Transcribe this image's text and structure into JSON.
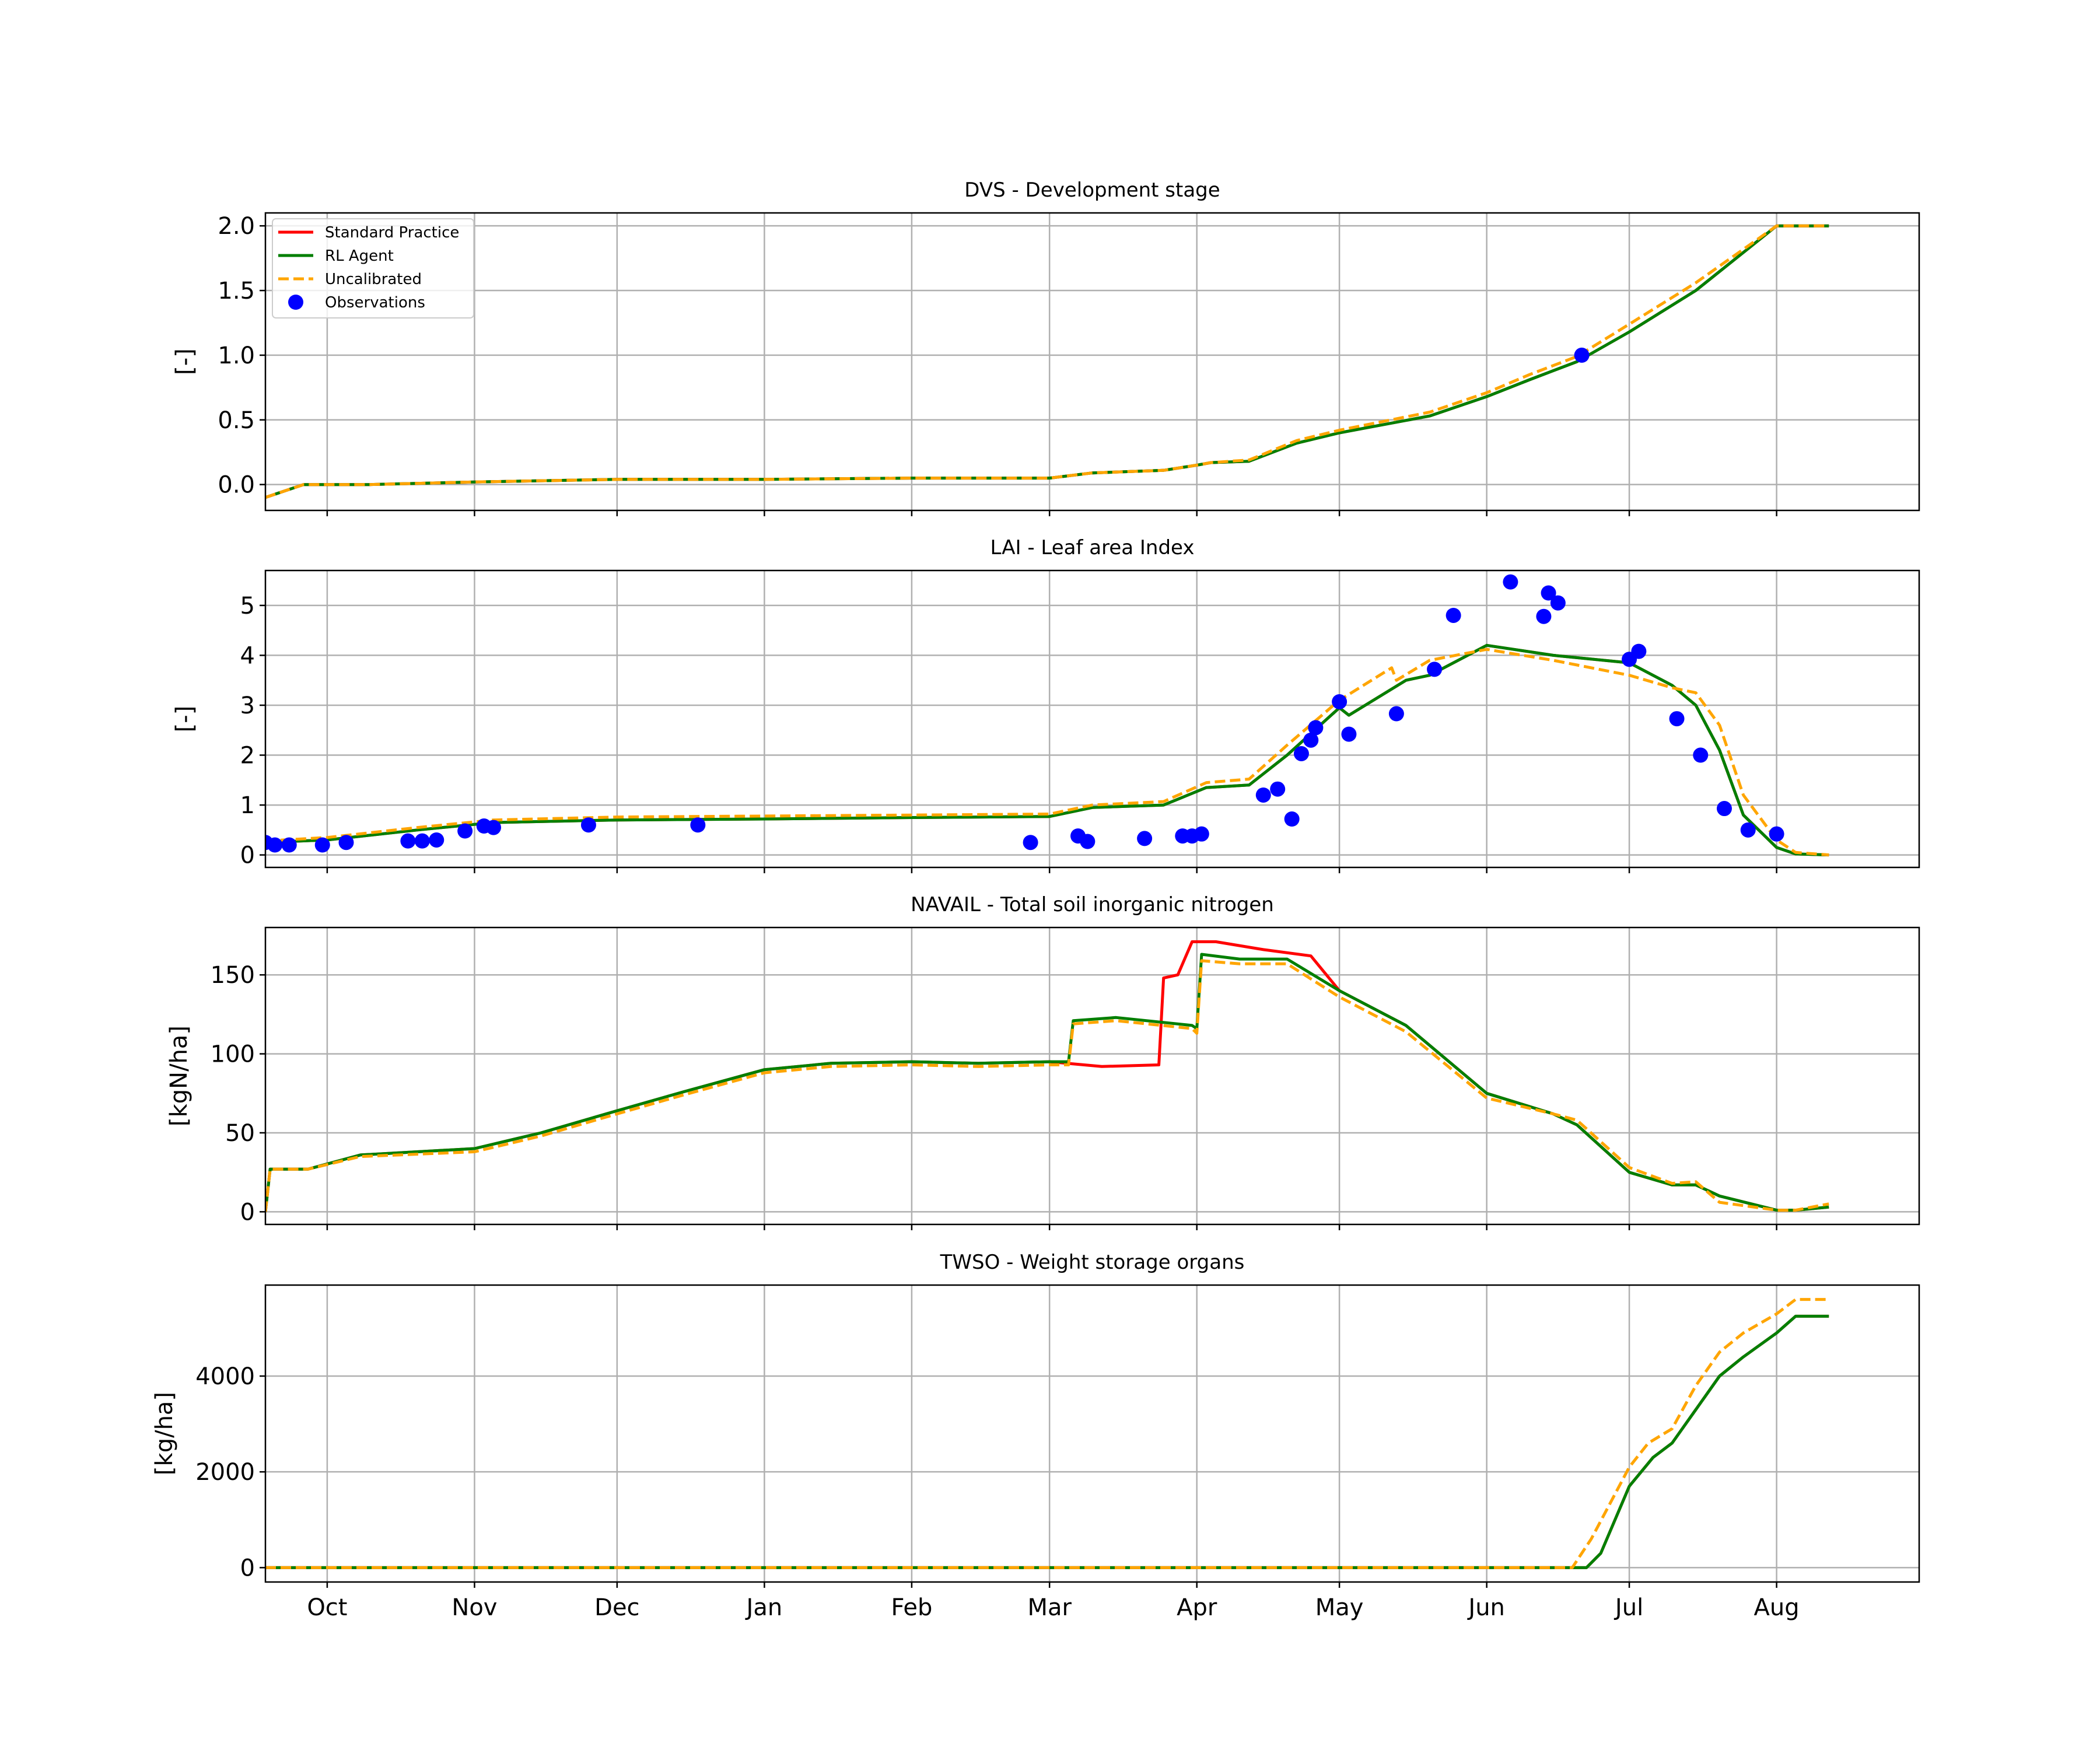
{
  "chart_data": [
    {
      "type": "line",
      "title": "DVS - Development stage",
      "xlabel": "",
      "ylabel": "[-]",
      "x_tick_labels": [
        "Oct",
        "Nov",
        "Dec",
        "Jan",
        "Feb",
        "Mar",
        "Apr",
        "May",
        "Jun",
        "Jul",
        "Aug"
      ],
      "x_ticks": [
        "2019-10-01",
        "2019-11-01",
        "2019-12-01",
        "2020-01-01",
        "2020-02-01",
        "2020-03-01",
        "2020-04-01",
        "2020-05-01",
        "2020-06-01",
        "2020-07-01",
        "2020-08-01"
      ],
      "xlim": [
        "2019-09-18",
        "2020-08-31"
      ],
      "ylim": [
        -0.2,
        2.1
      ],
      "yticks": [
        0.0,
        0.5,
        1.0,
        1.5,
        2.0
      ],
      "ytick_labels": [
        "0.0",
        "0.5",
        "1.0",
        "1.5",
        "2.0"
      ],
      "grid": true,
      "legend": "upper-left",
      "series": [
        {
          "name": "Standard Practice",
          "color": "#ff0000",
          "style": "solid",
          "x": [
            "2019-09-18",
            "2019-09-26",
            "2019-10-10",
            "2019-11-01",
            "2019-12-01",
            "2020-01-01",
            "2020-02-01",
            "2020-03-01",
            "2020-03-10",
            "2020-03-25",
            "2020-04-01",
            "2020-04-04",
            "2020-04-12",
            "2020-04-22",
            "2020-05-01",
            "2020-05-20",
            "2020-06-01",
            "2020-06-10",
            "2020-06-20",
            "2020-07-01",
            "2020-07-15",
            "2020-08-01",
            "2020-08-12"
          ],
          "y": [
            -0.1,
            0.0,
            0.0,
            0.02,
            0.04,
            0.04,
            0.05,
            0.05,
            0.09,
            0.11,
            0.15,
            0.17,
            0.18,
            0.32,
            0.4,
            0.53,
            0.68,
            0.81,
            0.95,
            1.18,
            1.5,
            2.0,
            2.0
          ]
        },
        {
          "name": "RL Agent",
          "color": "#007f00",
          "style": "solid",
          "x": [
            "2019-09-18",
            "2019-09-26",
            "2019-10-10",
            "2019-11-01",
            "2019-12-01",
            "2020-01-01",
            "2020-02-01",
            "2020-03-01",
            "2020-03-10",
            "2020-03-25",
            "2020-04-01",
            "2020-04-04",
            "2020-04-12",
            "2020-04-22",
            "2020-05-01",
            "2020-05-20",
            "2020-06-01",
            "2020-06-10",
            "2020-06-20",
            "2020-07-01",
            "2020-07-15",
            "2020-08-01",
            "2020-08-12"
          ],
          "y": [
            -0.1,
            0.0,
            0.0,
            0.02,
            0.04,
            0.04,
            0.05,
            0.05,
            0.09,
            0.11,
            0.15,
            0.17,
            0.18,
            0.32,
            0.4,
            0.53,
            0.68,
            0.81,
            0.95,
            1.18,
            1.5,
            2.0,
            2.0
          ]
        },
        {
          "name": "Uncalibrated",
          "color": "#ffa500",
          "style": "dashed",
          "x": [
            "2019-09-18",
            "2019-09-26",
            "2019-10-10",
            "2019-11-01",
            "2019-12-01",
            "2020-01-01",
            "2020-02-01",
            "2020-03-01",
            "2020-03-10",
            "2020-03-25",
            "2020-04-01",
            "2020-04-04",
            "2020-04-12",
            "2020-04-22",
            "2020-05-01",
            "2020-05-20",
            "2020-06-01",
            "2020-06-10",
            "2020-06-20",
            "2020-07-01",
            "2020-07-15",
            "2020-08-01",
            "2020-08-12"
          ],
          "y": [
            -0.1,
            0.0,
            0.0,
            0.02,
            0.04,
            0.04,
            0.05,
            0.05,
            0.09,
            0.11,
            0.15,
            0.17,
            0.19,
            0.34,
            0.42,
            0.56,
            0.71,
            0.85,
            0.99,
            1.24,
            1.56,
            2.0,
            2.0
          ]
        },
        {
          "name": "Observations",
          "color": "#0000ff",
          "style": "markers",
          "x": [
            "2020-06-21"
          ],
          "y": [
            1.0
          ]
        }
      ]
    },
    {
      "type": "line",
      "title": "LAI - Leaf area Index",
      "xlabel": "",
      "ylabel": "[-]",
      "xlim": [
        "2019-09-18",
        "2020-08-31"
      ],
      "ylim": [
        -0.25,
        5.7
      ],
      "yticks": [
        0,
        1,
        2,
        3,
        4,
        5
      ],
      "ytick_labels": [
        "0",
        "1",
        "2",
        "3",
        "4",
        "5"
      ],
      "grid": true,
      "series": [
        {
          "name": "Standard Practice",
          "color": "#ff0000",
          "style": "solid",
          "x": [
            "2019-09-18",
            "2019-10-01",
            "2019-10-20",
            "2019-11-05",
            "2019-12-01",
            "2020-01-01",
            "2020-02-01",
            "2020-03-01",
            "2020-03-10",
            "2020-03-25",
            "2020-04-03",
            "2020-04-12",
            "2020-04-20",
            "2020-05-01",
            "2020-05-03",
            "2020-05-15",
            "2020-05-20",
            "2020-06-01",
            "2020-06-15",
            "2020-07-01",
            "2020-07-10",
            "2020-07-15",
            "2020-07-20",
            "2020-07-25",
            "2020-08-01",
            "2020-08-05",
            "2020-08-12"
          ],
          "y": [
            0.25,
            0.3,
            0.5,
            0.65,
            0.7,
            0.72,
            0.75,
            0.77,
            0.95,
            1.0,
            1.35,
            1.4,
            2.0,
            2.95,
            2.8,
            3.5,
            3.6,
            4.2,
            4.0,
            3.85,
            3.4,
            3.0,
            2.1,
            0.8,
            0.15,
            0.02,
            0.0
          ]
        },
        {
          "name": "RL Agent",
          "color": "#007f00",
          "style": "solid",
          "x": [
            "2019-09-18",
            "2019-10-01",
            "2019-10-20",
            "2019-11-05",
            "2019-12-01",
            "2020-01-01",
            "2020-02-01",
            "2020-03-01",
            "2020-03-10",
            "2020-03-25",
            "2020-04-03",
            "2020-04-12",
            "2020-04-20",
            "2020-05-01",
            "2020-05-03",
            "2020-05-15",
            "2020-05-20",
            "2020-06-01",
            "2020-06-15",
            "2020-07-01",
            "2020-07-10",
            "2020-07-15",
            "2020-07-20",
            "2020-07-25",
            "2020-08-01",
            "2020-08-05",
            "2020-08-12"
          ],
          "y": [
            0.25,
            0.3,
            0.5,
            0.65,
            0.7,
            0.72,
            0.75,
            0.77,
            0.95,
            1.0,
            1.35,
            1.4,
            2.0,
            2.95,
            2.8,
            3.5,
            3.6,
            4.2,
            4.0,
            3.85,
            3.4,
            3.0,
            2.1,
            0.8,
            0.15,
            0.02,
            0.0
          ]
        },
        {
          "name": "Uncalibrated",
          "color": "#ffa500",
          "style": "dashed",
          "x": [
            "2019-09-18",
            "2019-10-01",
            "2019-10-20",
            "2019-11-05",
            "2019-12-01",
            "2020-01-01",
            "2020-02-01",
            "2020-03-01",
            "2020-03-10",
            "2020-03-25",
            "2020-04-03",
            "2020-04-12",
            "2020-04-20",
            "2020-05-01",
            "2020-05-12",
            "2020-05-13",
            "2020-05-20",
            "2020-06-01",
            "2020-06-15",
            "2020-07-01",
            "2020-07-10",
            "2020-07-15",
            "2020-07-20",
            "2020-07-25",
            "2020-08-01",
            "2020-08-05",
            "2020-08-12"
          ],
          "y": [
            0.28,
            0.35,
            0.55,
            0.7,
            0.76,
            0.78,
            0.8,
            0.82,
            1.0,
            1.07,
            1.45,
            1.52,
            2.2,
            3.1,
            3.75,
            3.5,
            3.9,
            4.12,
            3.9,
            3.6,
            3.35,
            3.25,
            2.6,
            1.2,
            0.3,
            0.05,
            0.0
          ]
        },
        {
          "name": "Observations",
          "color": "#0000ff",
          "style": "markers",
          "x": [
            "2019-09-18",
            "2019-09-20",
            "2019-09-23",
            "2019-09-30",
            "2019-10-05",
            "2019-10-18",
            "2019-10-21",
            "2019-10-24",
            "2019-10-30",
            "2019-11-03",
            "2019-11-05",
            "2019-11-25",
            "2019-12-18",
            "2020-02-26",
            "2020-03-07",
            "2020-03-09",
            "2020-03-21",
            "2020-03-29",
            "2020-03-31",
            "2020-04-02",
            "2020-04-15",
            "2020-04-18",
            "2020-04-21",
            "2020-04-23",
            "2020-04-25",
            "2020-04-26",
            "2020-05-01",
            "2020-05-03",
            "2020-05-13",
            "2020-05-21",
            "2020-05-25",
            "2020-06-06",
            "2020-06-13",
            "2020-06-14",
            "2020-06-16",
            "2020-07-01",
            "2020-07-03",
            "2020-07-11",
            "2020-07-16",
            "2020-07-21",
            "2020-07-26",
            "2020-08-01"
          ],
          "y": [
            0.25,
            0.2,
            0.2,
            0.2,
            0.25,
            0.28,
            0.28,
            0.3,
            0.48,
            0.58,
            0.55,
            0.6,
            0.6,
            0.25,
            0.38,
            0.27,
            0.33,
            0.38,
            0.38,
            0.42,
            1.2,
            1.32,
            0.72,
            2.03,
            2.3,
            2.55,
            3.07,
            2.42,
            2.83,
            3.72,
            4.8,
            5.47,
            4.78,
            5.25,
            5.05,
            3.92,
            4.08,
            2.73,
            2.0,
            0.93,
            0.5,
            0.42
          ]
        }
      ]
    },
    {
      "type": "line",
      "title": "NAVAIL - Total soil inorganic nitrogen",
      "xlabel": "",
      "ylabel": "[kgN/ha]",
      "xlim": [
        "2019-09-18",
        "2020-08-31"
      ],
      "ylim": [
        -8,
        180
      ],
      "yticks": [
        0,
        50,
        100,
        150
      ],
      "ytick_labels": [
        "0",
        "50",
        "100",
        "150"
      ],
      "grid": true,
      "series": [
        {
          "name": "Standard Practice",
          "color": "#ff0000",
          "style": "solid",
          "x": [
            "2019-09-18",
            "2019-09-19",
            "2019-09-26",
            "2019-09-27",
            "2019-10-08",
            "2019-11-01",
            "2019-11-15",
            "2019-12-01",
            "2019-12-15",
            "2020-01-01",
            "2020-01-15",
            "2020-02-01",
            "2020-02-15",
            "2020-03-01",
            "2020-03-12",
            "2020-03-24",
            "2020-03-25",
            "2020-03-28",
            "2020-03-31",
            "2020-04-05",
            "2020-04-15",
            "2020-04-25",
            "2020-05-01",
            "2020-05-15",
            "2020-06-01",
            "2020-06-15",
            "2020-06-20",
            "2020-07-01",
            "2020-07-10",
            "2020-07-15",
            "2020-07-20",
            "2020-08-01",
            "2020-08-05",
            "2020-08-12"
          ],
          "y": [
            0,
            27,
            27,
            27,
            36,
            40,
            50,
            64,
            76,
            90,
            94,
            95,
            94,
            95,
            92,
            93,
            148,
            150,
            171,
            171,
            166,
            162,
            140,
            118,
            75,
            62,
            55,
            25,
            17,
            17,
            10,
            1,
            1,
            3
          ]
        },
        {
          "name": "RL Agent",
          "color": "#007f00",
          "style": "solid",
          "x": [
            "2019-09-18",
            "2019-09-19",
            "2019-09-26",
            "2019-09-27",
            "2019-10-08",
            "2019-11-01",
            "2019-11-15",
            "2019-12-01",
            "2019-12-15",
            "2020-01-01",
            "2020-01-15",
            "2020-02-01",
            "2020-02-15",
            "2020-03-01",
            "2020-03-05",
            "2020-03-06",
            "2020-03-15",
            "2020-03-31",
            "2020-04-01",
            "2020-04-02",
            "2020-04-10",
            "2020-04-20",
            "2020-05-01",
            "2020-05-15",
            "2020-06-01",
            "2020-06-15",
            "2020-06-20",
            "2020-07-01",
            "2020-07-10",
            "2020-07-15",
            "2020-07-20",
            "2020-08-01",
            "2020-08-05",
            "2020-08-12"
          ],
          "y": [
            0,
            27,
            27,
            27,
            36,
            40,
            50,
            64,
            76,
            90,
            94,
            95,
            94,
            95,
            95,
            121,
            123,
            118,
            116,
            163,
            160,
            160,
            140,
            118,
            75,
            62,
            55,
            25,
            17,
            17,
            10,
            1,
            1,
            3
          ]
        },
        {
          "name": "Uncalibrated",
          "color": "#ffa500",
          "style": "dashed",
          "x": [
            "2019-09-18",
            "2019-09-19",
            "2019-09-26",
            "2019-09-27",
            "2019-10-08",
            "2019-11-01",
            "2019-11-15",
            "2019-12-01",
            "2019-12-15",
            "2020-01-01",
            "2020-01-15",
            "2020-02-01",
            "2020-02-15",
            "2020-03-01",
            "2020-03-05",
            "2020-03-06",
            "2020-03-15",
            "2020-03-31",
            "2020-04-01",
            "2020-04-02",
            "2020-04-10",
            "2020-04-20",
            "2020-05-01",
            "2020-05-15",
            "2020-06-01",
            "2020-06-15",
            "2020-06-20",
            "2020-07-01",
            "2020-07-10",
            "2020-07-15",
            "2020-07-20",
            "2020-08-01",
            "2020-08-05",
            "2020-08-12"
          ],
          "y": [
            0,
            27,
            27,
            27,
            35,
            38,
            48,
            62,
            74,
            88,
            92,
            93,
            92,
            93,
            93,
            119,
            121,
            116,
            113,
            159,
            157,
            157,
            136,
            114,
            72,
            62,
            58,
            28,
            18,
            19,
            6,
            1,
            1,
            5
          ]
        }
      ]
    },
    {
      "type": "line",
      "title": "TWSO - Weight storage organs",
      "xlabel": "",
      "ylabel": "[kg/ha]",
      "xlim": [
        "2019-09-18",
        "2020-08-31"
      ],
      "ylim": [
        -300,
        5900
      ],
      "yticks": [
        0,
        2000,
        4000
      ],
      "ytick_labels": [
        "0",
        "2000",
        "4000"
      ],
      "grid": true,
      "series": [
        {
          "name": "Standard Practice",
          "color": "#ff0000",
          "style": "solid",
          "x": [
            "2019-09-18",
            "2020-06-22",
            "2020-06-25",
            "2020-07-01",
            "2020-07-06",
            "2020-07-10",
            "2020-07-15",
            "2020-07-20",
            "2020-07-25",
            "2020-08-01",
            "2020-08-05",
            "2020-08-12"
          ],
          "y": [
            0,
            0,
            300,
            1700,
            2300,
            2600,
            3300,
            4000,
            4400,
            4900,
            5250,
            5250
          ]
        },
        {
          "name": "RL Agent",
          "color": "#007f00",
          "style": "solid",
          "x": [
            "2019-09-18",
            "2020-06-22",
            "2020-06-25",
            "2020-07-01",
            "2020-07-06",
            "2020-07-10",
            "2020-07-15",
            "2020-07-20",
            "2020-07-25",
            "2020-08-01",
            "2020-08-05",
            "2020-08-12"
          ],
          "y": [
            0,
            0,
            300,
            1700,
            2300,
            2600,
            3300,
            4000,
            4400,
            4900,
            5250,
            5250
          ]
        },
        {
          "name": "Uncalibrated",
          "color": "#ffa500",
          "style": "dashed",
          "x": [
            "2019-09-18",
            "2020-06-19",
            "2020-06-23",
            "2020-07-01",
            "2020-07-05",
            "2020-07-10",
            "2020-07-15",
            "2020-07-20",
            "2020-07-25",
            "2020-08-01",
            "2020-08-05",
            "2020-08-12"
          ],
          "y": [
            0,
            0,
            600,
            2100,
            2600,
            2900,
            3800,
            4500,
            4900,
            5300,
            5600,
            5600
          ]
        }
      ]
    }
  ]
}
